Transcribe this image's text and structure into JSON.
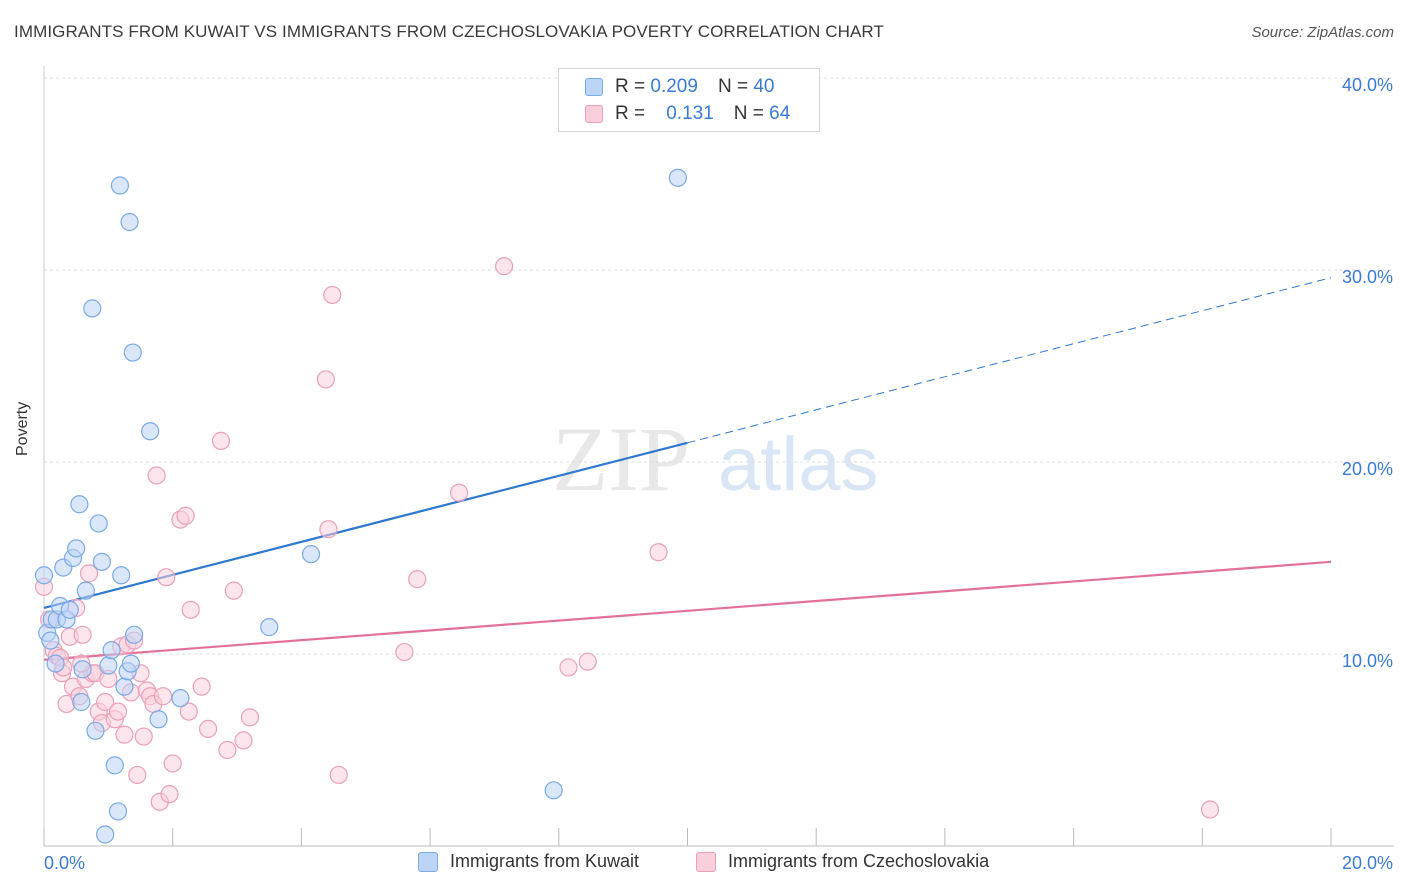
{
  "title": "IMMIGRANTS FROM KUWAIT VS IMMIGRANTS FROM CZECHOSLOVAKIA POVERTY CORRELATION CHART",
  "source": "Source: ZipAtlas.com",
  "watermark": {
    "zip": "ZIP",
    "atlas": "atlas"
  },
  "legend_top": {
    "rows": [
      {
        "r_label": "R =",
        "r_value": "0.209",
        "n_label": "N =",
        "n_value": "40"
      },
      {
        "r_label": "R =",
        "r_value": "0.131",
        "n_label": "N =",
        "n_value": "64"
      }
    ]
  },
  "colors": {
    "blue_fill": "#bcd4f5",
    "blue_stroke": "#7aaae6",
    "blue_line": "#2f78d0",
    "pink_fill": "#f9cfdc",
    "pink_stroke": "#eba0b8",
    "pink_line": "#e3709a",
    "axis_label": "#3a7bd5",
    "grid": "#dddddd"
  },
  "chart_data": {
    "type": "scatter",
    "title": "IMMIGRANTS FROM KUWAIT VS IMMIGRANTS FROM CZECHOSLOVAKIA POVERTY CORRELATION CHART",
    "xlabel": "",
    "ylabel": "Poverty",
    "xlim": [
      0,
      0.2
    ],
    "ylim": [
      0,
      0.4
    ],
    "x_tick_labels": [
      "0.0%",
      "20.0%"
    ],
    "y_tick_values": [
      0.1,
      0.2,
      0.3,
      0.4
    ],
    "y_tick_labels": [
      "10.0%",
      "20.0%",
      "30.0%",
      "40.0%"
    ],
    "series": [
      {
        "name": "Immigrants from Kuwait",
        "color": "blue",
        "points": [
          [
            0.0,
            0.141
          ],
          [
            0.0005,
            0.111
          ],
          [
            0.001,
            0.107
          ],
          [
            0.0012,
            0.118
          ],
          [
            0.0018,
            0.095
          ],
          [
            0.002,
            0.118
          ],
          [
            0.0025,
            0.125
          ],
          [
            0.003,
            0.145
          ],
          [
            0.0035,
            0.118
          ],
          [
            0.004,
            0.123
          ],
          [
            0.0045,
            0.15
          ],
          [
            0.005,
            0.155
          ],
          [
            0.0055,
            0.178
          ],
          [
            0.006,
            0.092
          ],
          [
            0.0065,
            0.133
          ],
          [
            0.0075,
            0.28
          ],
          [
            0.008,
            0.06
          ],
          [
            0.0085,
            0.168
          ],
          [
            0.009,
            0.148
          ],
          [
            0.0095,
            0.006
          ],
          [
            0.01,
            0.094
          ],
          [
            0.0105,
            0.102
          ],
          [
            0.011,
            0.042
          ],
          [
            0.0115,
            0.018
          ],
          [
            0.012,
            0.141
          ],
          [
            0.0118,
            0.344
          ],
          [
            0.0125,
            0.083
          ],
          [
            0.013,
            0.091
          ],
          [
            0.0133,
            0.325
          ],
          [
            0.0138,
            0.257
          ],
          [
            0.014,
            0.11
          ],
          [
            0.0165,
            0.216
          ],
          [
            0.0178,
            0.066
          ],
          [
            0.0212,
            0.077
          ],
          [
            0.035,
            0.114
          ],
          [
            0.0415,
            0.152
          ],
          [
            0.0792,
            0.029
          ],
          [
            0.0985,
            0.348
          ],
          [
            0.0058,
            0.075
          ],
          [
            0.0135,
            0.095
          ]
        ],
        "trend_solid": {
          "x": [
            0.0,
            0.1
          ],
          "y": [
            0.124,
            0.21
          ]
        },
        "trend_dashed": {
          "x": [
            0.1,
            0.2
          ],
          "y": [
            0.21,
            0.296
          ]
        }
      },
      {
        "name": "Immigrants from Czechoslovakia",
        "color": "pink",
        "points": [
          [
            0.0,
            0.135
          ],
          [
            0.0008,
            0.118
          ],
          [
            0.0015,
            0.102
          ],
          [
            0.002,
            0.099
          ],
          [
            0.0025,
            0.098
          ],
          [
            0.0028,
            0.09
          ],
          [
            0.003,
            0.093
          ],
          [
            0.0035,
            0.074
          ],
          [
            0.004,
            0.109
          ],
          [
            0.0045,
            0.083
          ],
          [
            0.005,
            0.124
          ],
          [
            0.0055,
            0.078
          ],
          [
            0.006,
            0.11
          ],
          [
            0.0065,
            0.087
          ],
          [
            0.007,
            0.142
          ],
          [
            0.0075,
            0.09
          ],
          [
            0.008,
            0.09
          ],
          [
            0.0085,
            0.07
          ],
          [
            0.009,
            0.064
          ],
          [
            0.0095,
            0.075
          ],
          [
            0.01,
            0.087
          ],
          [
            0.011,
            0.066
          ],
          [
            0.0115,
            0.07
          ],
          [
            0.012,
            0.104
          ],
          [
            0.0125,
            0.058
          ],
          [
            0.013,
            0.105
          ],
          [
            0.0135,
            0.08
          ],
          [
            0.014,
            0.107
          ],
          [
            0.0145,
            0.037
          ],
          [
            0.015,
            0.09
          ],
          [
            0.0155,
            0.057
          ],
          [
            0.016,
            0.081
          ],
          [
            0.0165,
            0.078
          ],
          [
            0.017,
            0.074
          ],
          [
            0.0175,
            0.193
          ],
          [
            0.018,
            0.023
          ],
          [
            0.0185,
            0.078
          ],
          [
            0.019,
            0.14
          ],
          [
            0.0195,
            0.027
          ],
          [
            0.02,
            0.043
          ],
          [
            0.0212,
            0.17
          ],
          [
            0.022,
            0.172
          ],
          [
            0.0225,
            0.07
          ],
          [
            0.0228,
            0.123
          ],
          [
            0.0245,
            0.083
          ],
          [
            0.0255,
            0.061
          ],
          [
            0.0275,
            0.211
          ],
          [
            0.0285,
            0.05
          ],
          [
            0.0295,
            0.133
          ],
          [
            0.031,
            0.055
          ],
          [
            0.032,
            0.067
          ],
          [
            0.0438,
            0.243
          ],
          [
            0.0442,
            0.165
          ],
          [
            0.0448,
            0.287
          ],
          [
            0.0458,
            0.037
          ],
          [
            0.056,
            0.101
          ],
          [
            0.058,
            0.139
          ],
          [
            0.0645,
            0.184
          ],
          [
            0.0715,
            0.302
          ],
          [
            0.0815,
            0.093
          ],
          [
            0.0845,
            0.096
          ],
          [
            0.0955,
            0.153
          ],
          [
            0.1812,
            0.019
          ],
          [
            0.0058,
            0.095
          ]
        ],
        "trend_solid": {
          "x": [
            0.0,
            0.2
          ],
          "y": [
            0.097,
            0.148
          ]
        }
      }
    ]
  },
  "bottom_legend": {
    "kuwait": "Immigrants from Kuwait",
    "czech": "Immigrants from Czechoslovakia"
  }
}
